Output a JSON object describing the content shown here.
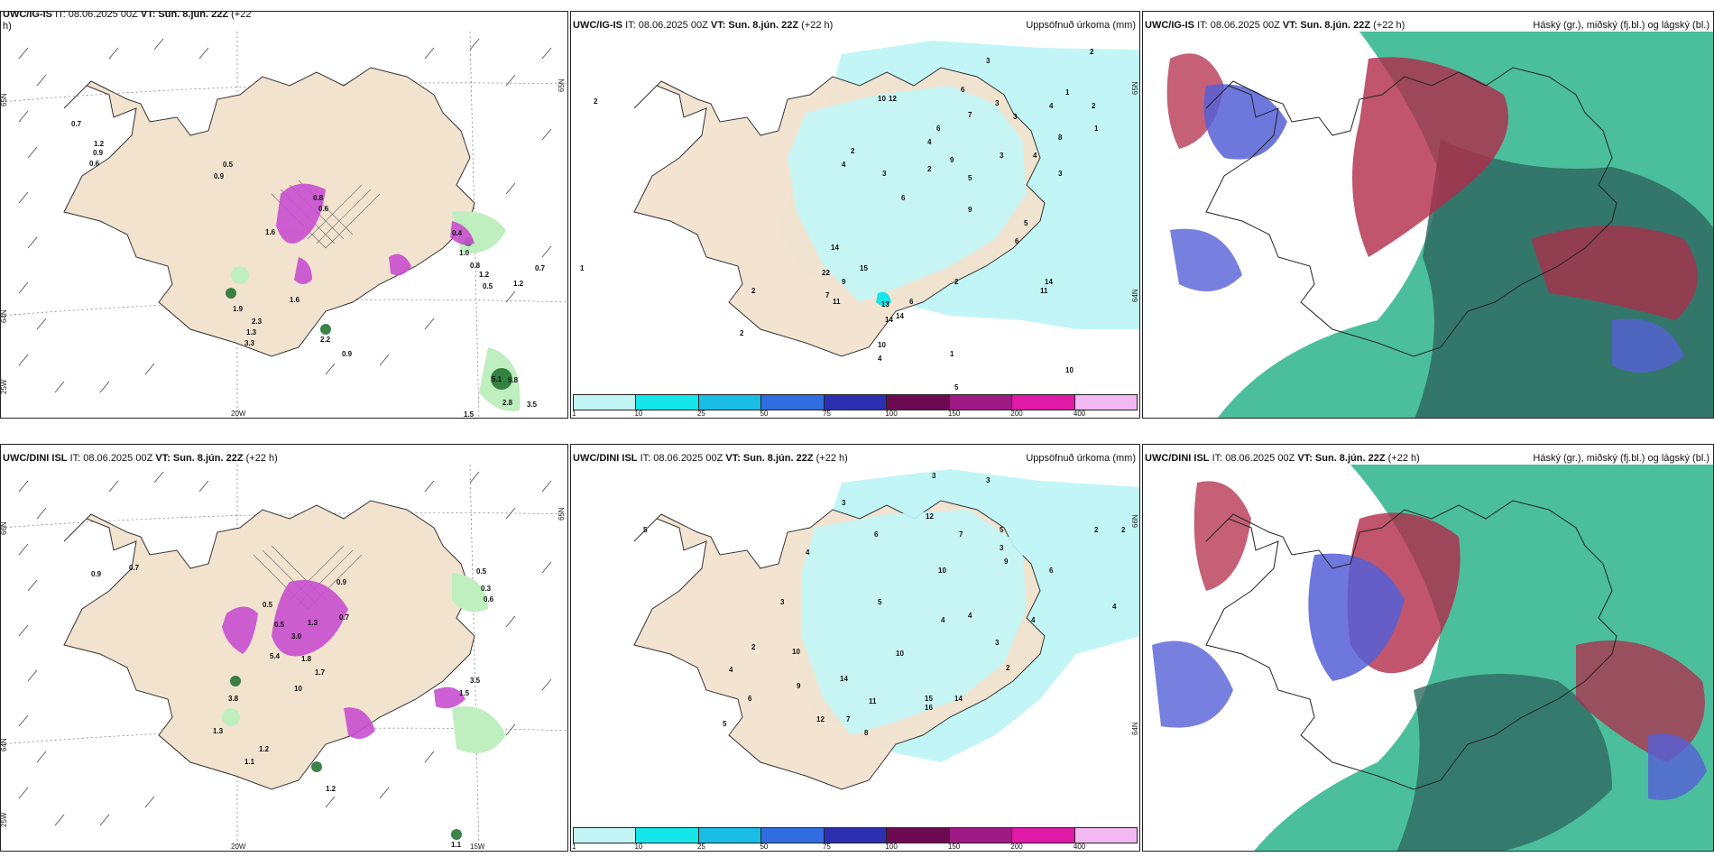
{
  "colors": {
    "land": "#f2e3cf",
    "precip_light": "#c2f6f6",
    "precip_cyan": "#14e6ea",
    "green_light": "#bfeebf",
    "green_dark": "#1a6e2a",
    "magenta": "#c84fd0",
    "cloud_high": "#b22b4a",
    "cloud_mid": "#2bb48a",
    "cloud_low": "#5560d6",
    "cloud_dark": "#2f6a62"
  },
  "panels": [
    {
      "id": "p1",
      "header_model": "UWC/IG-IS",
      "header_it": "IT: 08.06.2025 00Z",
      "header_vt": "VT: Sun. 8.jún. 22Z",
      "header_offset": "(+22",
      "header_wrap": "h)",
      "header_right": "",
      "lat_labels": [
        "65N",
        "64N",
        "65N"
      ],
      "lon_labels": [
        "25W",
        "20W"
      ],
      "values": [
        "0.7",
        "1.2",
        "0.9",
        "0.6",
        "0.5",
        "0.9",
        "0.8",
        "0.6",
        "1.6",
        "0.4",
        "1.0",
        "0.8",
        "1.2",
        "0.5",
        "0.7",
        "1.2",
        "1.9",
        "1.6",
        "2.3",
        "1.3",
        "3.3",
        "2.2",
        "0.9",
        "5.1",
        "5.8",
        "2.8",
        "3.5",
        "1.5"
      ]
    },
    {
      "id": "p2",
      "header_model": "UWC/IG-IS",
      "header_it": "IT: 08.06.2025 00Z",
      "header_vt": "VT: Sun. 8.jún. 22Z",
      "header_offset": "(+22 h)",
      "header_right": "Uppsöfnuð úrkoma (mm)",
      "lat_labels": [
        "65N",
        "64N"
      ],
      "values": [
        "2",
        "3",
        "2",
        "10",
        "12",
        "6",
        "3",
        "1",
        "2",
        "4",
        "3",
        "1",
        "6",
        "9",
        "7",
        "3",
        "4",
        "3",
        "5",
        "2",
        "3",
        "8",
        "4",
        "6",
        "4",
        "2",
        "9",
        "1",
        "6",
        "5",
        "2",
        "14",
        "22",
        "15",
        "13",
        "9",
        "2",
        "7",
        "11",
        "14",
        "14",
        "10",
        "4",
        "6",
        "11",
        "14",
        "1",
        "10",
        "5",
        "2"
      ]
    },
    {
      "id": "p3",
      "header_model": "UWC/IG-IS",
      "header_it": "IT: 08.06.2025 00Z",
      "header_vt": "VT: Sun. 8.jún. 22Z",
      "header_offset": "(+22 h)",
      "header_right": "Háský (gr.), miðský (fj.bl.) og lágský (bl.)"
    },
    {
      "id": "p4",
      "header_model": "UWC/DINI ISL",
      "header_it": "IT: 08.06.2025 00Z",
      "header_vt": "VT: Sun. 8.jún. 22Z",
      "header_offset": "(+22 h)",
      "header_right": "",
      "lat_labels": [
        "66N",
        "64N",
        "65N"
      ],
      "lon_labels": [
        "25W",
        "20W",
        "15W"
      ],
      "values": [
        "0.7",
        "0.9",
        "0.5",
        "0.9",
        "0.6",
        "0.7",
        "0.5",
        "1.3",
        "3.0",
        "5.4",
        "1.8",
        "1.7",
        "10",
        "3.8",
        "1.3",
        "1.2",
        "1.1",
        "1.2",
        "3.5",
        "0.3",
        "1.1",
        "1.5",
        "0.5"
      ]
    },
    {
      "id": "p5",
      "header_model": "UWC/DINI ISL",
      "header_it": "IT: 08.06.2025 00Z",
      "header_vt": "VT: Sun. 8.jún. 22Z",
      "header_offset": "(+22 h)",
      "header_right": "Uppsöfnuð úrkoma (mm)",
      "lat_labels": [
        "66N",
        "64N"
      ],
      "values": [
        "3",
        "3",
        "5",
        "3",
        "12",
        "7",
        "6",
        "4",
        "10",
        "5",
        "3",
        "9",
        "2",
        "2",
        "4",
        "6",
        "4",
        "3",
        "4",
        "10",
        "14",
        "9",
        "8",
        "12",
        "7",
        "11",
        "16",
        "15",
        "14",
        "10",
        "6",
        "5",
        "4",
        "2",
        "3",
        "5",
        "4",
        "2"
      ]
    },
    {
      "id": "p6",
      "header_model": "UWC/DINI ISL",
      "header_it": "IT: 08.06.2025 00Z",
      "header_vt": "VT: Sun. 8.jún. 22Z",
      "header_offset": "(+22 h)",
      "header_right": "Háský (gr.), miðský (fj.bl.) og lágský (bl.)"
    }
  ],
  "colorbar": {
    "labels": [
      "1",
      "10",
      "25",
      "50",
      "75",
      "100",
      "150",
      "200",
      "400"
    ],
    "colors": [
      "#c2f6f6",
      "#14e6ea",
      "#19bde6",
      "#2f6de0",
      "#2b2fb0",
      "#6d0b52",
      "#a01a86",
      "#e01aa6",
      "#f2b8f2"
    ]
  }
}
